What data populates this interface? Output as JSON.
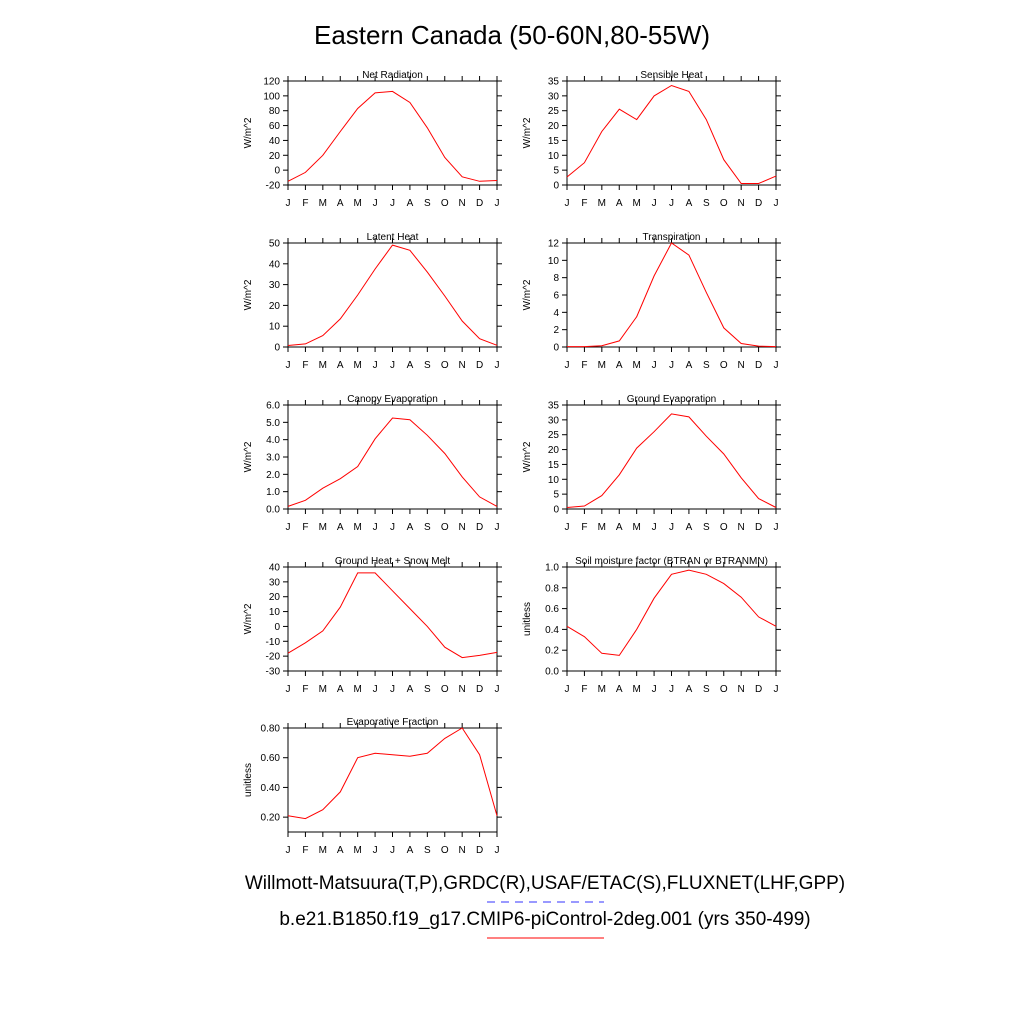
{
  "title": "Eastern Canada (50-60N,80-55W)",
  "months": [
    "J",
    "F",
    "M",
    "A",
    "M",
    "J",
    "J",
    "A",
    "S",
    "O",
    "N",
    "D",
    "J"
  ],
  "chart_data": [
    {
      "type": "line",
      "title": "Net Radiation",
      "ylabel": "W/m^2",
      "ylim": [
        -20,
        120
      ],
      "yticks": [
        -20,
        0,
        20,
        40,
        60,
        80,
        100,
        120
      ],
      "ytick_labels": [
        "-20",
        "0",
        "20",
        "40",
        "60",
        "80",
        "100",
        "120"
      ],
      "values": [
        -15,
        -3,
        20,
        52,
        83,
        104,
        106,
        91,
        57,
        17,
        -9,
        -15,
        -14
      ]
    },
    {
      "type": "line",
      "title": "Sensible Heat",
      "ylabel": "W/m^2",
      "ylim": [
        0,
        35
      ],
      "yticks": [
        0,
        5,
        10,
        15,
        20,
        25,
        30,
        35
      ],
      "ytick_labels": [
        "0",
        "5",
        "10",
        "15",
        "20",
        "25",
        "30",
        "35"
      ],
      "values": [
        2.7,
        7.5,
        18,
        25.5,
        22,
        30,
        33.5,
        31.5,
        22,
        8.5,
        0.5,
        0.5,
        3
      ]
    },
    {
      "type": "line",
      "title": "Latent Heat",
      "ylabel": "W/m^2",
      "ylim": [
        0,
        50
      ],
      "yticks": [
        0,
        10,
        20,
        30,
        40,
        50
      ],
      "ytick_labels": [
        "0",
        "10",
        "20",
        "30",
        "40",
        "50"
      ],
      "values": [
        0.7,
        1.5,
        5.5,
        13.5,
        25,
        37.5,
        49,
        46.5,
        36,
        24.5,
        12.5,
        4,
        0.8
      ]
    },
    {
      "type": "line",
      "title": "Transpiration",
      "ylabel": "W/m^2",
      "ylim": [
        0,
        12
      ],
      "yticks": [
        0,
        2,
        4,
        6,
        8,
        10,
        12
      ],
      "ytick_labels": [
        "0",
        "2",
        "4",
        "6",
        "8",
        "10",
        "12"
      ],
      "values": [
        0.05,
        0.05,
        0.15,
        0.7,
        3.5,
        8.2,
        12,
        10.6,
        6.3,
        2.2,
        0.4,
        0.1,
        0.05
      ]
    },
    {
      "type": "line",
      "title": "Canopy Evaporation",
      "ylabel": "W/m^2",
      "ylim": [
        0,
        6
      ],
      "yticks": [
        0,
        1,
        2,
        3,
        4,
        5,
        6
      ],
      "ytick_labels": [
        "0.0",
        "1.0",
        "2.0",
        "3.0",
        "4.0",
        "5.0",
        "6.0"
      ],
      "values": [
        0.15,
        0.5,
        1.2,
        1.75,
        2.45,
        4.05,
        5.25,
        5.15,
        4.25,
        3.2,
        1.85,
        0.7,
        0.15
      ]
    },
    {
      "type": "line",
      "title": "Ground Evaporation",
      "ylabel": "W/m^2",
      "ylim": [
        0,
        35
      ],
      "yticks": [
        0,
        5,
        10,
        15,
        20,
        25,
        30,
        35
      ],
      "ytick_labels": [
        "0",
        "5",
        "10",
        "15",
        "20",
        "25",
        "30",
        "35"
      ],
      "values": [
        0.5,
        1,
        4.5,
        11.5,
        20.5,
        26,
        32,
        31,
        24.5,
        18.5,
        10.5,
        3.5,
        0.5
      ]
    },
    {
      "type": "line",
      "title": "Ground Heat + Snow Melt",
      "ylabel": "W/m^2",
      "ylim": [
        -30,
        40
      ],
      "yticks": [
        -30,
        -20,
        -10,
        0,
        10,
        20,
        30,
        40
      ],
      "ytick_labels": [
        "-30",
        "-20",
        "-10",
        "0",
        "10",
        "20",
        "30",
        "40"
      ],
      "values": [
        -18,
        -11,
        -3,
        13,
        36,
        36,
        24,
        12,
        0,
        -14,
        -21,
        -19.5,
        -17.5
      ]
    },
    {
      "type": "line",
      "title": "Soil moisture factor (BTRAN or BTRANMN)",
      "ylabel": "unitless",
      "ylim": [
        0,
        1
      ],
      "yticks": [
        0,
        0.2,
        0.4,
        0.6,
        0.8,
        1.0
      ],
      "ytick_labels": [
        "0.0",
        "0.2",
        "0.4",
        "0.6",
        "0.8",
        "1.0"
      ],
      "values": [
        0.43,
        0.33,
        0.17,
        0.15,
        0.4,
        0.7,
        0.93,
        0.97,
        0.93,
        0.84,
        0.71,
        0.52,
        0.43
      ]
    },
    {
      "type": "line",
      "title": "Evaporative Fraction",
      "ylabel": "unitless",
      "ylim": [
        0.1,
        0.8
      ],
      "yticks": [
        0.2,
        0.4,
        0.6,
        0.8
      ],
      "ytick_labels": [
        "0.20",
        "0.40",
        "0.60",
        "0.80"
      ],
      "values": [
        0.21,
        0.19,
        0.25,
        0.37,
        0.6,
        0.63,
        0.62,
        0.61,
        0.63,
        0.73,
        0.8,
        0.62,
        0.21
      ]
    }
  ],
  "footer": {
    "obs_label": "Willmott-Matsuura(T,P),GRDC(R),USAF/ETAC(S),FLUXNET(LHF,GPP)",
    "model_label": "b.e21.B1850.f19_g17.CMIP6-piControl-2deg.001 (yrs 350-499)"
  },
  "colors": {
    "model_line": "#ff0000",
    "obs_line": "#3333ff",
    "axis": "#000000"
  }
}
